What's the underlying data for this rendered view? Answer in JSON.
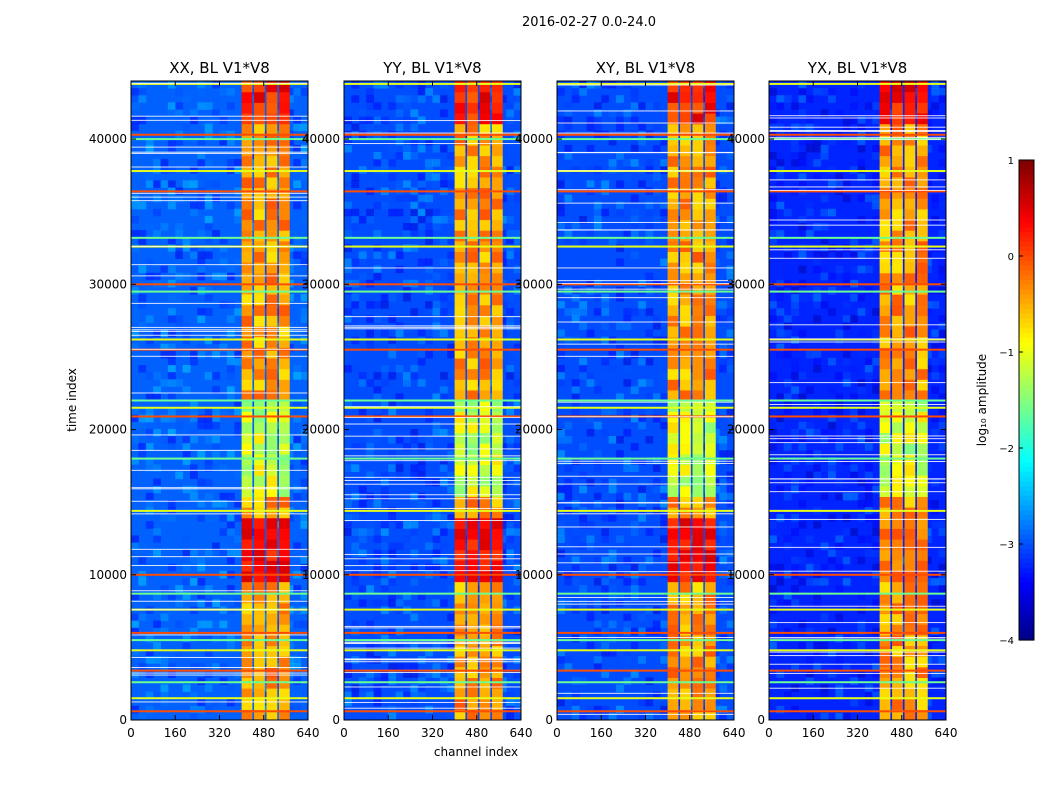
{
  "chart_data": {
    "type": "heatmap",
    "suptitle": "2016-02-27 0.0-24.0",
    "xlabel": "channel index",
    "ylabel": "time index",
    "xlim": [
      0,
      640
    ],
    "ylim": [
      0,
      44000
    ],
    "xticks": [
      0,
      160,
      320,
      480,
      640
    ],
    "yticks": [
      0,
      10000,
      20000,
      30000,
      40000
    ],
    "xtick_labels": [
      "0",
      "160",
      "320",
      "480",
      "640"
    ],
    "ytick_labels": [
      "0",
      "10000",
      "20000",
      "30000",
      "40000"
    ],
    "colormap": "jet",
    "colorbar": {
      "label": "log₁₀ amplitude",
      "range": [
        -4,
        1
      ],
      "ticks": [
        1,
        0,
        -1,
        -2,
        -3,
        -4
      ],
      "tick_labels": [
        "1",
        "0",
        "−1",
        "−2",
        "−3",
        "−4"
      ]
    },
    "panels": [
      {
        "title": "XX, BL V1*V8",
        "pol": "XX",
        "background_level": -2.9
      },
      {
        "title": "YY, BL V1*V8",
        "pol": "YY",
        "background_level": -3.0
      },
      {
        "title": "XY, BL V1*V8",
        "pol": "XY",
        "background_level": -3.0
      },
      {
        "title": "YX, BL V1*V8",
        "pol": "YX",
        "background_level": -3.2
      }
    ],
    "signal_band_channels": [
      400,
      580
    ],
    "signal_level_log10": [
      -1.5,
      0.6
    ],
    "rfi_time_rows": [
      600,
      1500,
      2600,
      3400,
      4800,
      5500,
      6000,
      7600,
      8700,
      10000,
      14400,
      18000,
      20900,
      21500,
      22000,
      25500,
      26200,
      29500,
      30000,
      32600,
      33200,
      36400,
      37800,
      40000,
      40300,
      43800
    ]
  }
}
